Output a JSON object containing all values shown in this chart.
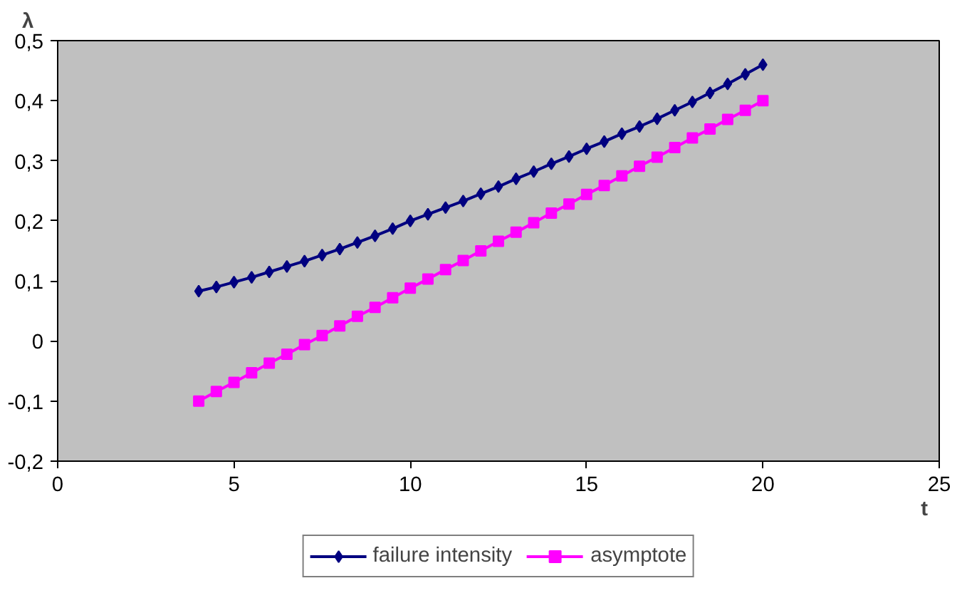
{
  "chart_data": {
    "type": "line",
    "xlabel": "t",
    "ylabel": "λ",
    "xlim": [
      0,
      25
    ],
    "xticks": [
      0,
      5,
      10,
      15,
      20,
      25
    ],
    "ylim": [
      -0.2,
      0.5
    ],
    "yticks": [
      {
        "value": -0.2,
        "label": "-0,2"
      },
      {
        "value": -0.1,
        "label": "-0,1"
      },
      0,
      {
        "value": 0.1,
        "label": "0,1"
      },
      {
        "value": 0.2,
        "label": "0,2"
      },
      {
        "value": 0.3,
        "label": "0,3"
      },
      {
        "value": 0.4,
        "label": "0,4"
      },
      {
        "value": 0.5,
        "label": "0,5"
      }
    ],
    "x": [
      4,
      4.5,
      5,
      5.5,
      6,
      6.5,
      7,
      7.5,
      8,
      8.5,
      9,
      9.5,
      10,
      10.5,
      11,
      11.5,
      12,
      12.5,
      13,
      13.5,
      14,
      14.5,
      15,
      15.5,
      16,
      16.5,
      17,
      17.5,
      18,
      18.5,
      19,
      19.5,
      20
    ],
    "series": [
      {
        "name": "failure intensity",
        "color": "#000080",
        "marker": "diamond",
        "values": [
          0.083,
          0.09,
          0.098,
          0.106,
          0.115,
          0.124,
          0.133,
          0.143,
          0.153,
          0.164,
          0.175,
          0.187,
          0.2,
          0.211,
          0.222,
          0.233,
          0.245,
          0.257,
          0.27,
          0.282,
          0.295,
          0.307,
          0.32,
          0.332,
          0.345,
          0.357,
          0.37,
          0.384,
          0.398,
          0.413,
          0.428,
          0.444,
          0.46
        ]
      },
      {
        "name": "asymptote",
        "color": "#ff00ff",
        "marker": "square",
        "values": [
          -0.1,
          -0.084,
          -0.069,
          -0.053,
          -0.037,
          -0.022,
          -0.006,
          0.009,
          0.025,
          0.041,
          0.056,
          0.072,
          0.088,
          0.103,
          0.119,
          0.134,
          0.15,
          0.166,
          0.181,
          0.197,
          0.213,
          0.228,
          0.244,
          0.259,
          0.275,
          0.291,
          0.306,
          0.322,
          0.338,
          0.353,
          0.369,
          0.384,
          0.4
        ]
      }
    ],
    "grid": false,
    "legend": "bottom"
  }
}
